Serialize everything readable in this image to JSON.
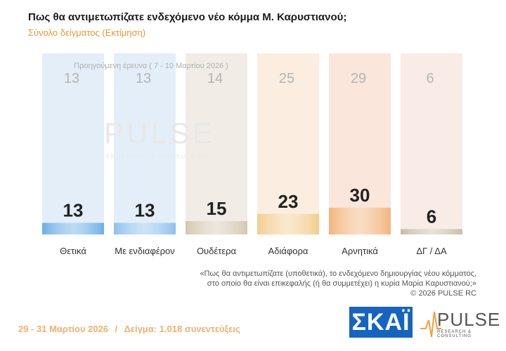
{
  "header": {
    "title": "Πως θα αντιμετωπίζατε ενδεχόμενο νέο κόμμα Μ. Καρυστιανού;",
    "subtitle": "Σύνολο δείγματος  (Εκτίμηση)"
  },
  "chart_data": {
    "type": "bar",
    "categories": [
      "Θετικά",
      "Με ενδιαφέρον",
      "Ουδέτερα",
      "Αδιάφορα",
      "Αρνητικά",
      "ΔΓ / ΔΑ"
    ],
    "series": [
      {
        "name": "",
        "values": [
          13,
          13,
          15,
          23,
          30,
          6
        ]
      },
      {
        "name": "Προηγούμενη έρευνα ( 7 - 10 Μαρτίου 2026 )",
        "values": [
          13,
          13,
          14,
          25,
          29,
          6
        ]
      }
    ],
    "ylim": [
      0,
      100
    ],
    "colors": [
      "#6aaee8",
      "#8cc0ee",
      "#d4c7b0",
      "#f2cd8e",
      "#f2b47a",
      "#c8bca8"
    ],
    "previous_colors": [
      "#e3eef9",
      "#e3eef9",
      "#f1ede6",
      "#fbeee0",
      "#fbe6db",
      "#f9ece6"
    ],
    "watermark": "PULSE",
    "watermark_tag": "RESEARCH & CONSULTING"
  },
  "note": {
    "line1": "«Πως θα αντιμετωπίζατε (υποθετικά), το ενδεχόμενο δημιουργίας νέου κόμματος,",
    "line2": "στο οποίο θα είναι επικεφαλής (ή θα συμμετέχει) η κυρία Μαρία Καρυστιανού;»",
    "line3": "©  2026  PULSE RC"
  },
  "footer": {
    "dates": "29 - 31  Μαρτίου 2026",
    "separator": "/",
    "sample": "Δείγμα:  1.018 συνεντεύξεις"
  },
  "logos": {
    "skai": "ΣΚΑΪ",
    "pulse": "PULSE",
    "pulse_tag": "RESEARCH & CONSULTING"
  }
}
